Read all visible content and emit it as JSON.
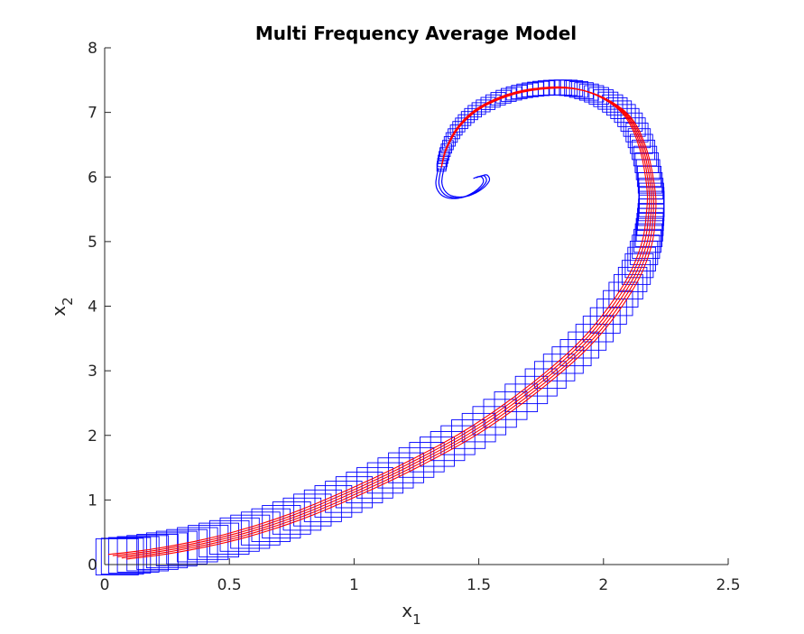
{
  "chart_data": {
    "type": "line",
    "title": "Multi Frequency Average Model",
    "xlabel": "x",
    "xlabel_sub": "1",
    "ylabel": "x",
    "ylabel_sub": "2",
    "xlim": [
      0,
      2.5
    ],
    "ylim": [
      0,
      8
    ],
    "xticks": [
      "0",
      "0.5",
      "1",
      "1.5",
      "2",
      "2.5"
    ],
    "yticks": [
      "0",
      "1",
      "2",
      "3",
      "4",
      "5",
      "6",
      "7",
      "8"
    ],
    "grid": false,
    "legend": "none",
    "series": [
      {
        "color": "#ff0000",
        "style": "trajectory-bundle",
        "x": [
          0.05,
          0.25,
          0.5,
          0.75,
          1.0,
          1.25,
          1.5,
          1.75,
          1.95,
          2.1,
          2.17,
          2.19,
          2.19,
          2.16,
          2.1,
          2.0,
          1.88,
          1.75,
          1.62,
          1.5,
          1.42,
          1.37,
          1.35
        ],
        "y": [
          0.12,
          0.22,
          0.42,
          0.72,
          1.12,
          1.58,
          2.12,
          2.82,
          3.52,
          4.3,
          4.92,
          5.42,
          5.82,
          6.42,
          6.92,
          7.22,
          7.37,
          7.37,
          7.27,
          7.06,
          6.78,
          6.44,
          6.15
        ]
      },
      {
        "color": "#0000ff",
        "style": "enclosure-boxes",
        "x": [
          0.05,
          0.25,
          0.5,
          0.75,
          1.0,
          1.25,
          1.5,
          1.75,
          1.95,
          2.1,
          2.17,
          2.19,
          2.19,
          2.16,
          2.1,
          2.0,
          1.88,
          1.75,
          1.62,
          1.5,
          1.42,
          1.37,
          1.35
        ],
        "y": [
          0.12,
          0.22,
          0.42,
          0.72,
          1.12,
          1.58,
          2.12,
          2.82,
          3.52,
          4.3,
          4.92,
          5.42,
          5.82,
          6.42,
          6.92,
          7.22,
          7.37,
          7.37,
          7.27,
          7.06,
          6.78,
          6.44,
          6.15
        ]
      },
      {
        "color": "#0000ff",
        "style": "spiral-tail",
        "x": [
          1.35,
          1.34,
          1.36,
          1.4,
          1.45,
          1.5,
          1.53,
          1.52,
          1.49
        ],
        "y": [
          6.15,
          5.9,
          5.74,
          5.68,
          5.7,
          5.8,
          5.93,
          6.02,
          5.99
        ]
      }
    ]
  }
}
